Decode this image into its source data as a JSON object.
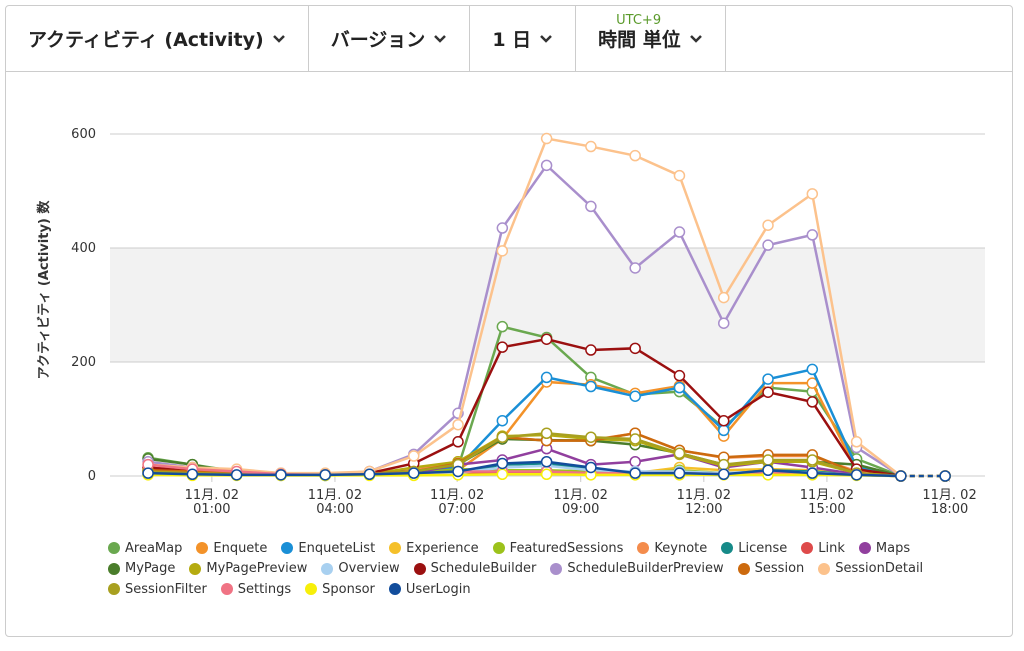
{
  "toolbar": {
    "items": [
      "アクティビティ (Activity)",
      "バージョン",
      "1 日",
      "時間 単位"
    ],
    "timezone": "UTC+9"
  },
  "chart_data": {
    "type": "line",
    "y_label": "アクティビティ (Activity) 数",
    "ylim": [
      0,
      600
    ],
    "yticks": [
      0,
      200,
      400,
      600
    ],
    "grid": true,
    "band": [
      200,
      400
    ],
    "dashed_from": 17,
    "xlim": [
      -0.86,
      18.9
    ],
    "xticks": [
      {
        "value": 1.44,
        "label": "11月. 02\n01:00"
      },
      {
        "value": 4.22,
        "label": "11月. 02\n04:00"
      },
      {
        "value": 6.98,
        "label": "11月. 02\n07:00"
      },
      {
        "value": 9.77,
        "label": "11月. 02\n09:00"
      },
      {
        "value": 12.55,
        "label": "11月. 02\n12:00"
      },
      {
        "value": 15.33,
        "label": "11月. 02\n15:00"
      },
      {
        "value": 18.1,
        "label": "11月. 02\n18:00"
      }
    ],
    "series": [
      {
        "name": "AreaMap",
        "color": "#6aa84f",
        "values": [
          32,
          20,
          8,
          3,
          3,
          5,
          8,
          15,
          262,
          243,
          173,
          143,
          148,
          85,
          155,
          148,
          30,
          0,
          0
        ]
      },
      {
        "name": "Enquete",
        "color": "#f39229",
        "values": [
          10,
          8,
          5,
          3,
          2,
          4,
          6,
          10,
          65,
          165,
          160,
          145,
          158,
          70,
          163,
          163,
          10,
          0,
          0
        ]
      },
      {
        "name": "EnqueteList",
        "color": "#1a8fd6",
        "values": [
          3,
          2,
          2,
          2,
          2,
          3,
          5,
          15,
          97,
          173,
          157,
          140,
          155,
          80,
          170,
          187,
          15,
          0,
          0
        ]
      },
      {
        "name": "Experience",
        "color": "#f5c02a",
        "values": [
          5,
          3,
          2,
          1,
          1,
          2,
          2,
          3,
          5,
          5,
          3,
          5,
          15,
          10,
          12,
          10,
          2,
          0,
          0
        ]
      },
      {
        "name": "FeaturedSessions",
        "color": "#9cc21b",
        "values": [
          8,
          5,
          3,
          2,
          2,
          3,
          5,
          12,
          10,
          10,
          8,
          5,
          10,
          5,
          5,
          3,
          2,
          0,
          0
        ]
      },
      {
        "name": "Keynote",
        "color": "#f48c4c",
        "values": [
          12,
          8,
          5,
          3,
          2,
          4,
          10,
          25,
          68,
          62,
          63,
          75,
          45,
          32,
          35,
          35,
          8,
          0,
          0
        ]
      },
      {
        "name": "License",
        "color": "#168a88",
        "values": [
          3,
          2,
          2,
          2,
          1,
          2,
          3,
          5,
          20,
          22,
          12,
          5,
          5,
          3,
          10,
          8,
          2,
          0,
          0
        ]
      },
      {
        "name": "Link",
        "color": "#de4a4a",
        "values": [
          15,
          10,
          5,
          3,
          2,
          3,
          3,
          5,
          5,
          6,
          5,
          5,
          5,
          3,
          5,
          5,
          2,
          0,
          0
        ]
      },
      {
        "name": "Maps",
        "color": "#913f9e",
        "values": [
          5,
          3,
          2,
          2,
          2,
          3,
          5,
          20,
          28,
          48,
          20,
          25,
          38,
          15,
          25,
          15,
          3,
          0,
          0
        ]
      },
      {
        "name": "MyPage",
        "color": "#4a7d2b",
        "values": [
          30,
          20,
          5,
          3,
          2,
          5,
          8,
          20,
          65,
          63,
          62,
          55,
          40,
          20,
          25,
          25,
          20,
          0,
          0
        ]
      },
      {
        "name": "MyPagePreview",
        "color": "#b5ab10",
        "values": [
          8,
          5,
          3,
          2,
          2,
          3,
          15,
          25,
          70,
          72,
          65,
          62,
          38,
          18,
          25,
          25,
          5,
          0,
          0
        ]
      },
      {
        "name": "Overview",
        "color": "#a8d0f0",
        "values": [
          3,
          2,
          2,
          1,
          1,
          2,
          3,
          5,
          15,
          18,
          10,
          8,
          8,
          5,
          8,
          6,
          2,
          0,
          0
        ]
      },
      {
        "name": "ScheduleBuilder",
        "color": "#9b1010",
        "values": [
          15,
          8,
          5,
          3,
          2,
          5,
          22,
          60,
          226,
          240,
          221,
          224,
          176,
          97,
          147,
          130,
          12,
          0,
          0
        ]
      },
      {
        "name": "ScheduleBuilderPreview",
        "color": "#a98fcc",
        "values": [
          25,
          15,
          10,
          5,
          3,
          8,
          38,
          110,
          435,
          545,
          473,
          365,
          428,
          268,
          405,
          423,
          50,
          0,
          0
        ]
      },
      {
        "name": "Session",
        "color": "#cc6a0e",
        "values": [
          10,
          8,
          5,
          3,
          2,
          4,
          8,
          22,
          68,
          62,
          62,
          75,
          45,
          33,
          37,
          37,
          5,
          0,
          0
        ]
      },
      {
        "name": "SessionDetail",
        "color": "#fcc28c",
        "values": [
          20,
          15,
          12,
          5,
          5,
          8,
          35,
          90,
          395,
          592,
          578,
          562,
          527,
          313,
          440,
          495,
          60,
          0,
          0
        ]
      },
      {
        "name": "SessionFilter",
        "color": "#a8a020",
        "values": [
          8,
          5,
          3,
          2,
          2,
          3,
          8,
          20,
          68,
          75,
          68,
          65,
          40,
          20,
          28,
          28,
          5,
          0,
          0
        ]
      },
      {
        "name": "Settings",
        "color": "#f07384",
        "values": [
          20,
          12,
          8,
          3,
          2,
          3,
          5,
          8,
          8,
          8,
          5,
          5,
          5,
          3,
          5,
          5,
          2,
          0,
          0
        ]
      },
      {
        "name": "Sponsor",
        "color": "#f7ef0a",
        "values": [
          2,
          1,
          1,
          1,
          1,
          1,
          1,
          2,
          3,
          3,
          2,
          2,
          2,
          2,
          2,
          2,
          1,
          0,
          0
        ]
      },
      {
        "name": "UserLogin",
        "color": "#124d9c",
        "values": [
          5,
          3,
          2,
          2,
          2,
          3,
          5,
          8,
          22,
          25,
          15,
          5,
          5,
          3,
          10,
          5,
          2,
          0,
          0
        ]
      }
    ]
  }
}
